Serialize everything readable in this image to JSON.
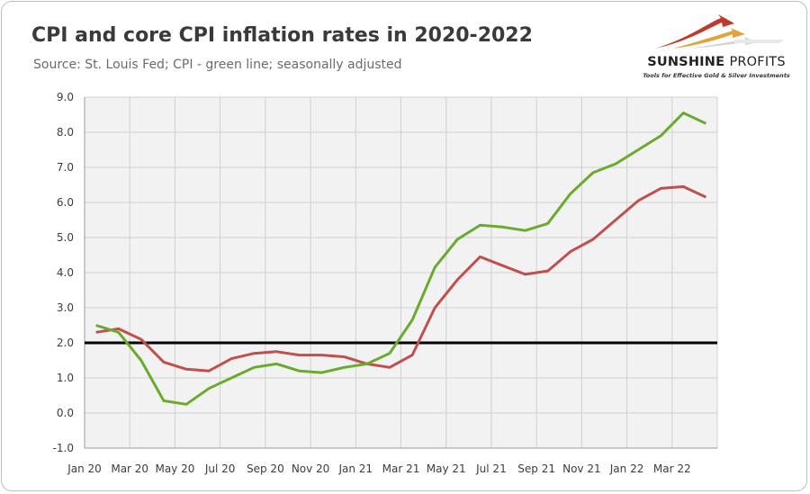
{
  "header": {
    "title": "CPI and core CPI inflation rates in 2020-2022",
    "subtitle": "Source: St. Louis Fed; CPI - green line; seasonally adjusted"
  },
  "logo": {
    "name_bold": "SUNSHINE",
    "name_light": "PROFITS",
    "tagline": "Tools for Effective Gold & Silver Investments"
  },
  "colors": {
    "cpi": "#6aaa2c",
    "core_cpi": "#c0504d",
    "reference_line": "#000000",
    "plot_background": "#f2f2f2",
    "grid": "#d0d0d0"
  },
  "chart_data": {
    "type": "line",
    "title": "CPI and core CPI inflation rates in 2020-2022",
    "subtitle": "Source: St. Louis Fed; CPI - green line; seasonally adjusted",
    "xlabel": "",
    "ylabel": "",
    "ylim": [
      -1.0,
      9.0
    ],
    "yticks": [
      "-1.0",
      "0.0",
      "1.0",
      "2.0",
      "3.0",
      "4.0",
      "5.0",
      "6.0",
      "7.0",
      "8.0",
      "9.0"
    ],
    "x_tick_labels": [
      "Jan 20",
      "Mar 20",
      "May 20",
      "Jul 20",
      "Sep 20",
      "Nov 20",
      "Jan 21",
      "Mar 21",
      "May 21",
      "Jul 21",
      "Sep 21",
      "Nov 21",
      "Jan 22",
      "Mar 22"
    ],
    "x": [
      "Jan 20",
      "Feb 20",
      "Mar 20",
      "Apr 20",
      "May 20",
      "Jun 20",
      "Jul 20",
      "Aug 20",
      "Sep 20",
      "Oct 20",
      "Nov 20",
      "Dec 20",
      "Jan 21",
      "Feb 21",
      "Mar 21",
      "Apr 21",
      "May 21",
      "Jun 21",
      "Jul 21",
      "Aug 21",
      "Sep 21",
      "Oct 21",
      "Nov 21",
      "Dec 21",
      "Jan 22",
      "Feb 22",
      "Mar 22",
      "Apr 22"
    ],
    "grid": true,
    "reference_line": 2.0,
    "series": [
      {
        "key": "cpi",
        "values": [
          2.5,
          2.3,
          1.5,
          0.35,
          0.25,
          0.7,
          1.0,
          1.3,
          1.4,
          1.2,
          1.15,
          1.3,
          1.4,
          1.7,
          2.65,
          4.15,
          4.95,
          5.35,
          5.3,
          5.2,
          5.4,
          6.25,
          6.85,
          7.1,
          7.5,
          7.9,
          8.55,
          8.25
        ]
      },
      {
        "key": "core_cpi",
        "values": [
          2.3,
          2.4,
          2.1,
          1.45,
          1.25,
          1.2,
          1.55,
          1.7,
          1.75,
          1.65,
          1.65,
          1.6,
          1.4,
          1.3,
          1.65,
          3.0,
          3.8,
          4.45,
          4.2,
          3.95,
          4.05,
          4.6,
          4.95,
          5.5,
          6.05,
          6.4,
          6.45,
          6.15
        ]
      }
    ]
  }
}
